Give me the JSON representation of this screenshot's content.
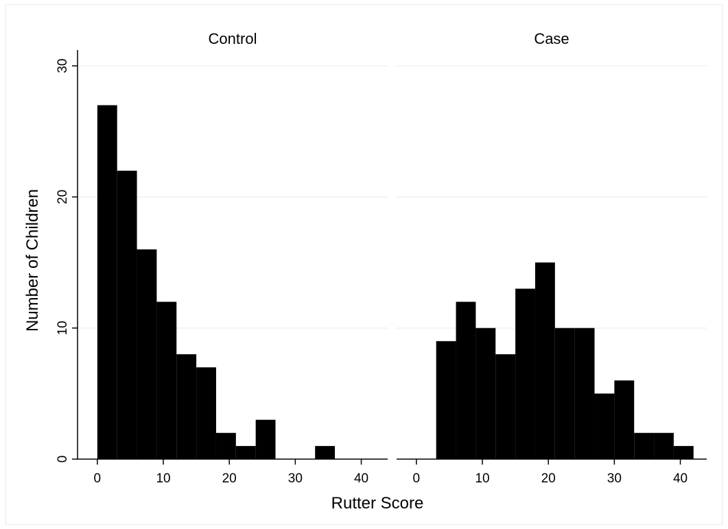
{
  "chart_data": {
    "type": "bar",
    "subtype": "histogram-by-group",
    "xlabel": "Rutter Score",
    "ylabel": "Number of Children",
    "xlim": [
      -3,
      44
    ],
    "ylim": [
      0,
      31
    ],
    "xticks": [
      0,
      10,
      20,
      30,
      40
    ],
    "yticks": [
      0,
      10,
      20,
      30
    ],
    "grid": true,
    "bin_width": 3,
    "colors": {
      "bar": "#000000",
      "grid": "#eaf2f3",
      "axis": "#000000"
    },
    "panels": [
      {
        "title": "Control",
        "bins": [
          {
            "start": 0,
            "end": 3,
            "count": 27
          },
          {
            "start": 3,
            "end": 6,
            "count": 22
          },
          {
            "start": 6,
            "end": 9,
            "count": 16
          },
          {
            "start": 9,
            "end": 12,
            "count": 12
          },
          {
            "start": 12,
            "end": 15,
            "count": 8
          },
          {
            "start": 15,
            "end": 18,
            "count": 7
          },
          {
            "start": 18,
            "end": 21,
            "count": 2
          },
          {
            "start": 21,
            "end": 24,
            "count": 1
          },
          {
            "start": 24,
            "end": 27,
            "count": 3
          },
          {
            "start": 33,
            "end": 36,
            "count": 1
          }
        ]
      },
      {
        "title": "Case",
        "bins": [
          {
            "start": 3,
            "end": 6,
            "count": 9
          },
          {
            "start": 6,
            "end": 9,
            "count": 12
          },
          {
            "start": 9,
            "end": 12,
            "count": 10
          },
          {
            "start": 12,
            "end": 15,
            "count": 8
          },
          {
            "start": 15,
            "end": 18,
            "count": 13
          },
          {
            "start": 18,
            "end": 21,
            "count": 15
          },
          {
            "start": 21,
            "end": 24,
            "count": 10
          },
          {
            "start": 24,
            "end": 27,
            "count": 10
          },
          {
            "start": 27,
            "end": 30,
            "count": 5
          },
          {
            "start": 30,
            "end": 33,
            "count": 6
          },
          {
            "start": 33,
            "end": 36,
            "count": 2
          },
          {
            "start": 36,
            "end": 39,
            "count": 2
          },
          {
            "start": 39,
            "end": 42,
            "count": 1
          }
        ]
      }
    ]
  }
}
